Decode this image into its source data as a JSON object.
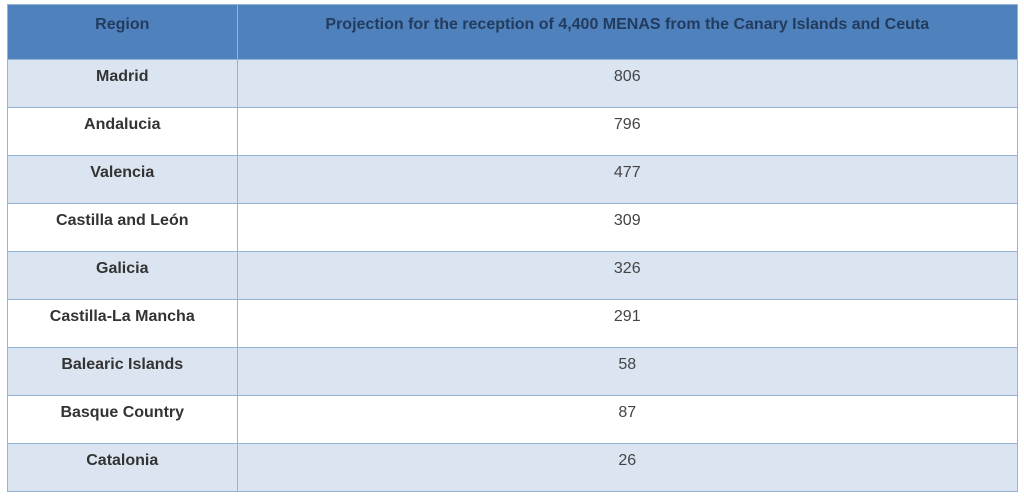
{
  "table": {
    "headers": {
      "region": "Region",
      "projection": "Projection for the reception of 4,400 MENAS from the Canary Islands and Ceuta"
    },
    "rows": [
      {
        "region": "Madrid",
        "value": "806"
      },
      {
        "region": "Andalucia",
        "value": "796"
      },
      {
        "region": "Valencia",
        "value": "477"
      },
      {
        "region": "Castilla and León",
        "value": "309"
      },
      {
        "region": "Galicia",
        "value": "326"
      },
      {
        "region": "Castilla-La Mancha",
        "value": "291"
      },
      {
        "region": "Balearic Islands",
        "value": "58"
      },
      {
        "region": "Basque Country",
        "value": "87"
      },
      {
        "region": "Catalonia",
        "value": "26"
      }
    ]
  },
  "colors": {
    "header_bg": "#4f81bd",
    "header_text": "#233c5e",
    "row_band": "#dbe5f1",
    "row_plain": "#ffffff",
    "border": "#95b3d7"
  }
}
